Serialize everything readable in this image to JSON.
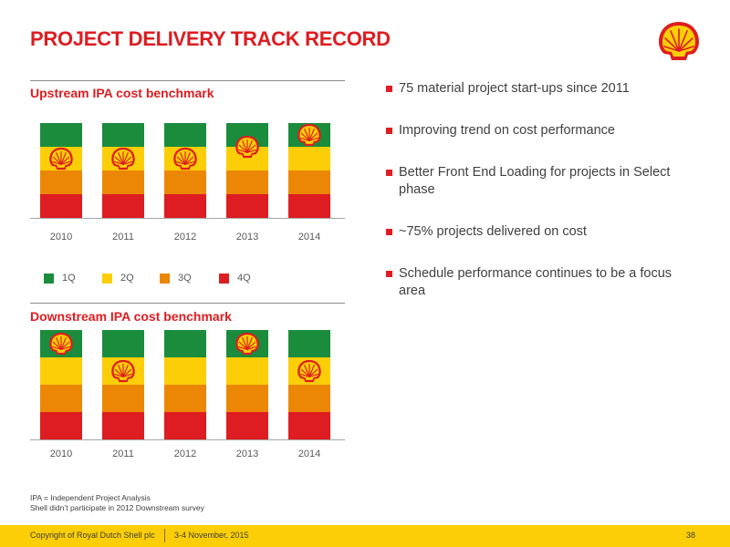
{
  "slide": {
    "title": "PROJECT DELIVERY TRACK RECORD"
  },
  "colors": {
    "brand_red": "#dd1d21",
    "brand_yellow": "#fbce07",
    "q1_green": "#1a8c3c",
    "q2_yellow": "#fbce07",
    "q3_orange": "#eb8705",
    "q4_red": "#dd1d21"
  },
  "logo": {
    "icon": "shell-pecten-icon"
  },
  "upstream": {
    "title": "Upstream IPA cost benchmark"
  },
  "downstream": {
    "title": "Downstream IPA cost benchmark"
  },
  "legend": {
    "items": [
      {
        "label": "1Q",
        "color": "#1a8c3c"
      },
      {
        "label": "2Q",
        "color": "#fbce07"
      },
      {
        "label": "3Q",
        "color": "#eb8705"
      },
      {
        "label": "4Q",
        "color": "#dd1d21"
      }
    ]
  },
  "chart_data": [
    {
      "type": "bar",
      "title": "Upstream IPA cost benchmark",
      "stacked": true,
      "categories": [
        "2010",
        "2011",
        "2012",
        "2013",
        "2014"
      ],
      "series": [
        {
          "name": "1Q",
          "values": [
            1,
            1,
            1,
            1,
            1
          ]
        },
        {
          "name": "2Q",
          "values": [
            1,
            1,
            1,
            1,
            1
          ]
        },
        {
          "name": "3Q",
          "values": [
            1,
            1,
            1,
            1,
            1
          ]
        },
        {
          "name": "4Q",
          "values": [
            1,
            1,
            1,
            1,
            1
          ]
        }
      ],
      "shell_position": [
        "2Q",
        "2Q",
        "2Q",
        "1Q/2Q",
        "1Q"
      ],
      "grid": false,
      "legend_position": "bottom"
    },
    {
      "type": "bar",
      "title": "Downstream IPA cost benchmark",
      "stacked": true,
      "categories": [
        "2010",
        "2011",
        "2012",
        "2013",
        "2014"
      ],
      "series": [
        {
          "name": "1Q",
          "values": [
            1,
            1,
            1,
            1,
            1
          ]
        },
        {
          "name": "2Q",
          "values": [
            1,
            1,
            1,
            1,
            1
          ]
        },
        {
          "name": "3Q",
          "values": [
            1,
            1,
            1,
            1,
            1
          ]
        },
        {
          "name": "4Q",
          "values": [
            1,
            1,
            1,
            1,
            1
          ]
        }
      ],
      "shell_position": [
        "1Q",
        "2Q",
        null,
        "1Q",
        "2Q"
      ],
      "grid": false
    }
  ],
  "bullets": [
    "75 material project start-ups since 2011",
    "Improving trend on cost performance",
    "Better Front End Loading for projects in Select phase",
    "~75% projects delivered on cost",
    "Schedule performance continues to be a focus area"
  ],
  "footnotes": {
    "line1": "IPA = Independent Project Analysis",
    "line2": "Shell didn’t participate in 2012 Downstream survey"
  },
  "footer": {
    "copyright": "Copyright of Royal Dutch Shell plc",
    "date": "3-4  November, 2015",
    "page": "38"
  }
}
